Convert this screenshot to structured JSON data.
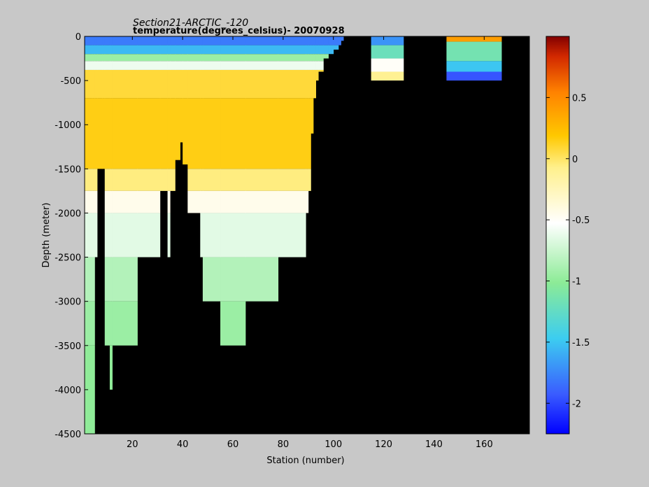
{
  "chart_data": {
    "type": "heatmap",
    "title": "Section21-ARCTIC_-120",
    "subtitle": "temperature(degrees_celsius)- 20070928",
    "xlabel": "Station (number)",
    "ylabel": "Depth (meter)",
    "xlim": [
      1,
      178
    ],
    "ylim": [
      -4500,
      0
    ],
    "x_ticks": [
      20,
      40,
      60,
      80,
      100,
      120,
      140,
      160
    ],
    "y_ticks": [
      0,
      -500,
      -1000,
      -1500,
      -2000,
      -2500,
      -3000,
      -3500,
      -4000,
      -4500
    ],
    "colorbar": {
      "range": [
        -2.25,
        1.0
      ],
      "ticks": [
        0.5,
        0,
        -0.5,
        -1,
        -1.5,
        -2
      ]
    },
    "missing_color": "#000000",
    "layers": [
      {
        "top": 0,
        "bottom": -100,
        "temperature": -1.8
      },
      {
        "top": -100,
        "bottom": -200,
        "temperature": -1.55
      },
      {
        "top": -200,
        "bottom": -280,
        "temperature": -0.95
      },
      {
        "top": -280,
        "bottom": -380,
        "temperature": -0.6
      },
      {
        "top": -380,
        "bottom": -700,
        "temperature": 0.08
      },
      {
        "top": -700,
        "bottom": -1500,
        "temperature": 0.15
      },
      {
        "top": -1500,
        "bottom": -1750,
        "temperature": -0.05
      },
      {
        "top": -1750,
        "bottom": -2000,
        "temperature": -0.45
      },
      {
        "top": -2000,
        "bottom": -2500,
        "temperature": -0.65
      },
      {
        "top": -2500,
        "bottom": -3000,
        "temperature": -0.85
      },
      {
        "top": -3000,
        "bottom": -3500,
        "temperature": -0.95
      },
      {
        "top": -3500,
        "bottom": -4500,
        "temperature": -1.0
      }
    ],
    "station_bottom_depths": [
      [
        1,
        -4500
      ],
      [
        4,
        -4500
      ],
      [
        5,
        -2500
      ],
      [
        6,
        -1500
      ],
      [
        8,
        -1500
      ],
      [
        9,
        -3500
      ],
      [
        11,
        -4000
      ],
      [
        12,
        -3500
      ],
      [
        22,
        -2500
      ],
      [
        31,
        -1750
      ],
      [
        34,
        -2500
      ],
      [
        35,
        -1750
      ],
      [
        37,
        -1400
      ],
      [
        39,
        -1200
      ],
      [
        40,
        -1450
      ],
      [
        42,
        -2000
      ],
      [
        47,
        -2500
      ],
      [
        48,
        -3000
      ],
      [
        55,
        -3500
      ],
      [
        65,
        -3000
      ],
      [
        78,
        -2500
      ],
      [
        89,
        -2000
      ],
      [
        90,
        -1750
      ],
      [
        91,
        -1100
      ],
      [
        92,
        -700
      ],
      [
        93,
        -500
      ],
      [
        94,
        -400
      ],
      [
        96,
        -250
      ],
      [
        98,
        -200
      ],
      [
        100,
        -150
      ],
      [
        102,
        -100
      ],
      [
        103,
        -50
      ],
      [
        104,
        0
      ]
    ],
    "isolated_segments": [
      {
        "x": [
          115,
          128
        ],
        "top": 0,
        "bottom": -500,
        "layers": [
          {
            "top": 0,
            "bottom": -100,
            "temperature": -1.7
          },
          {
            "top": -100,
            "bottom": -250,
            "temperature": -1.2
          },
          {
            "top": -250,
            "bottom": -400,
            "temperature": -0.5
          },
          {
            "top": -400,
            "bottom": -500,
            "temperature": -0.1
          }
        ]
      },
      {
        "x": [
          145,
          167
        ],
        "top": 0,
        "bottom": -500,
        "layers": [
          {
            "top": 0,
            "bottom": -60,
            "temperature": 0.4
          },
          {
            "top": -60,
            "bottom": -280,
            "temperature": -1.15
          },
          {
            "top": -280,
            "bottom": -400,
            "temperature": -1.5
          },
          {
            "top": -400,
            "bottom": -500,
            "temperature": -1.95
          }
        ]
      }
    ]
  }
}
